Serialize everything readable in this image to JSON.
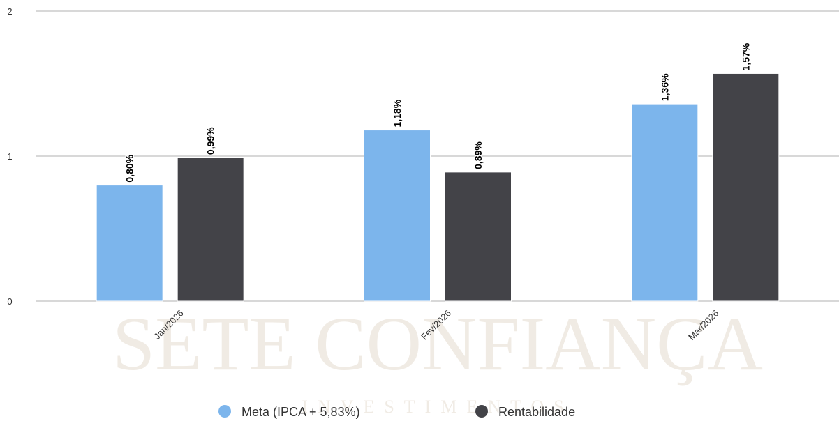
{
  "chart_data": {
    "type": "bar",
    "watermark": "SETE CONFIANÇA",
    "watermark_subtitle": "INVESTIMENTOS",
    "categories": [
      "Jan/2026",
      "Fev/2026",
      "Mar/2026"
    ],
    "series": [
      {
        "name": "Meta (IPCA + 5,83%)",
        "color": "#7cb5ec",
        "values": [
          0.8,
          1.18,
          1.36
        ],
        "value_labels": [
          "0,80%",
          "1,18%",
          "1,36%"
        ]
      },
      {
        "name": "Rentabilidade",
        "color": "#434348",
        "values": [
          0.99,
          0.89,
          1.57
        ],
        "value_labels": [
          "0,99%",
          "0,89%",
          "1,57%"
        ]
      }
    ],
    "ylim": [
      0,
      2
    ],
    "yticks": [
      0,
      1,
      2
    ],
    "grid": true,
    "legend": "bottom"
  }
}
